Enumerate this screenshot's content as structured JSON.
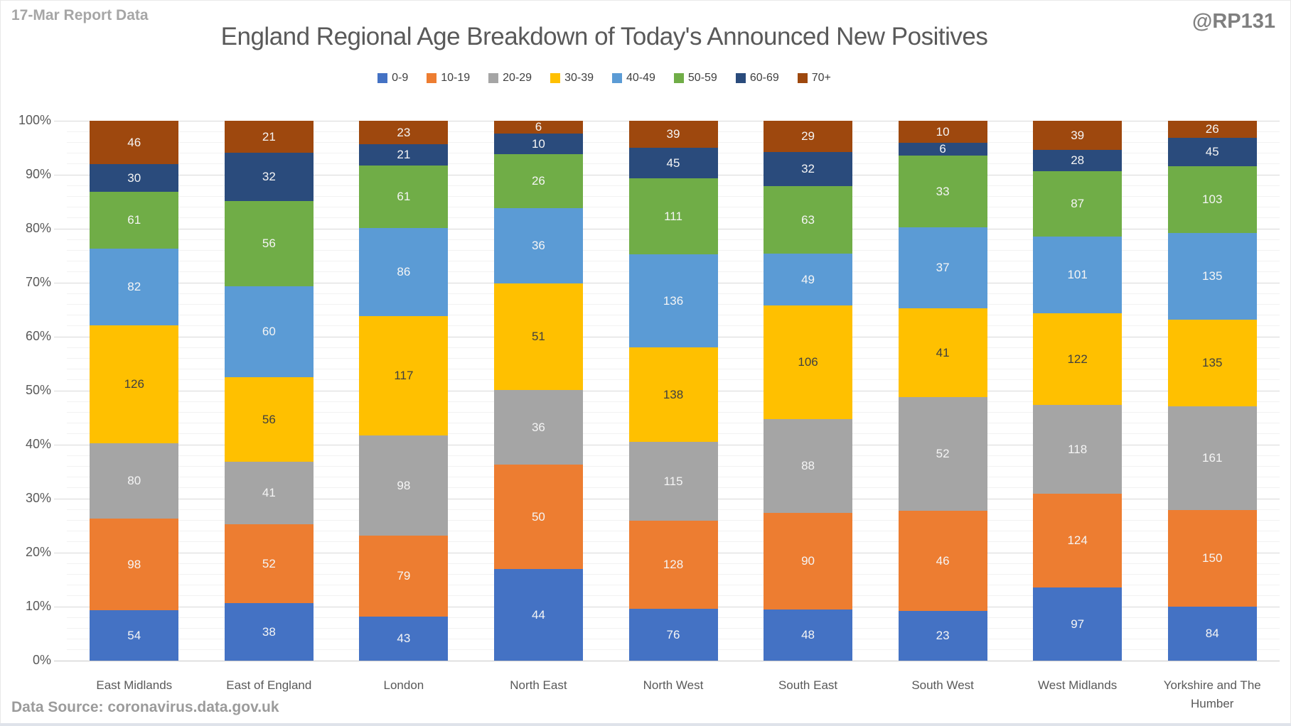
{
  "header": {
    "report_label": "17-Mar Report Data",
    "watermark": "@RP131"
  },
  "footer": {
    "source": "Data Source: coronavirus.data.gov.uk"
  },
  "chart_data": {
    "type": "bar",
    "variant": "stacked-100-percent",
    "title": "England Regional Age Breakdown of Today's Announced New Positives",
    "legend_position": "top",
    "categories": [
      "East Midlands",
      "East of England",
      "London",
      "North East",
      "North West",
      "South East",
      "South West",
      "West Midlands",
      "Yorkshire and The Humber"
    ],
    "series": [
      {
        "name": "0-9",
        "color": "#4472C4",
        "label_color": "#F5F5F5",
        "values": [
          54,
          38,
          43,
          44,
          76,
          48,
          23,
          97,
          84
        ]
      },
      {
        "name": "10-19",
        "color": "#ED7D31",
        "label_color": "#F5F5F5",
        "values": [
          98,
          52,
          79,
          50,
          128,
          90,
          46,
          124,
          150
        ]
      },
      {
        "name": "20-29",
        "color": "#A5A5A5",
        "label_color": "#F5F5F5",
        "values": [
          80,
          41,
          98,
          36,
          115,
          88,
          52,
          118,
          161
        ]
      },
      {
        "name": "30-39",
        "color": "#FFC000",
        "label_color": "#404040",
        "values": [
          126,
          56,
          117,
          51,
          138,
          106,
          41,
          122,
          135
        ]
      },
      {
        "name": "40-49",
        "color": "#5B9BD5",
        "label_color": "#F5F5F5",
        "values": [
          82,
          60,
          86,
          36,
          136,
          49,
          37,
          101,
          135
        ]
      },
      {
        "name": "50-59",
        "color": "#70AD47",
        "label_color": "#F5F5F5",
        "values": [
          61,
          56,
          61,
          26,
          111,
          63,
          33,
          87,
          103
        ]
      },
      {
        "name": "60-69",
        "color": "#2A4B7C",
        "label_color": "#F5F5F5",
        "values": [
          30,
          32,
          21,
          10,
          45,
          32,
          6,
          28,
          45
        ]
      },
      {
        "name": "70+",
        "color": "#9E480E",
        "label_color": "#F5F5F5",
        "values": [
          46,
          21,
          23,
          6,
          39,
          29,
          10,
          39,
          26
        ]
      }
    ],
    "y_axis": {
      "ticks": [
        "0%",
        "10%",
        "20%",
        "30%",
        "40%",
        "50%",
        "60%",
        "70%",
        "80%",
        "90%",
        "100%"
      ],
      "range": [
        0,
        100
      ],
      "major_unit": 10,
      "minor_unit": 2,
      "format": "percent"
    },
    "gridlines": {
      "major": true,
      "minor": true
    },
    "colors": {
      "grid_major": "#d9d9d9",
      "grid_minor": "#f2f2f2",
      "axis_line": "#c8c8c8",
      "axis_text": "#595959",
      "title_text": "#595959",
      "muted_text": "#a6a6a6"
    }
  }
}
